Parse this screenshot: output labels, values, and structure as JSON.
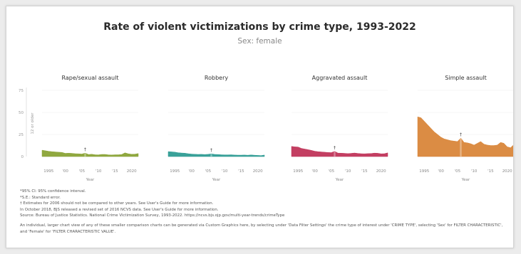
{
  "title": "Rate of violent victimizations by crime type, 1993-2022",
  "subtitle": "Sex: female",
  "chart_data": {
    "type": "area",
    "y_axis_label": "12 or older",
    "ylim": [
      0,
      75
    ],
    "y_ticks": [
      "0",
      "25",
      "50",
      "75"
    ],
    "x_tick_labels": [
      "1995",
      "'00",
      "'05",
      "'10",
      "'15",
      "2020"
    ],
    "xlabel": "Year",
    "x_years": [
      1993,
      1994,
      1995,
      1996,
      1997,
      1998,
      1999,
      2000,
      2001,
      2002,
      2003,
      2004,
      2005,
      2006,
      2007,
      2008,
      2009,
      2010,
      2011,
      2012,
      2013,
      2014,
      2015,
      2016,
      2017,
      2018,
      2019,
      2020,
      2021,
      2022
    ],
    "annotation_marker": "†",
    "annotation_year": 2006,
    "panels": [
      {
        "name": "Rape/sexual assault",
        "color": "#8aa336",
        "values": [
          7.2,
          6.6,
          5.9,
          5.5,
          5.2,
          4.9,
          4.7,
          3.6,
          3.8,
          3.6,
          3.2,
          3.1,
          2.8,
          3.9,
          2.3,
          2.6,
          2.0,
          1.9,
          2.4,
          2.4,
          1.9,
          1.8,
          2.0,
          2.0,
          2.3,
          4.2,
          3.1,
          2.6,
          2.7,
          3.4
        ]
      },
      {
        "name": "Robbery",
        "color": "#2f9c94",
        "values": [
          5.6,
          5.3,
          5.0,
          4.3,
          4.0,
          3.8,
          3.2,
          2.8,
          2.6,
          2.4,
          2.5,
          2.3,
          2.5,
          3.1,
          2.4,
          2.3,
          2.0,
          1.9,
          1.9,
          2.0,
          1.7,
          1.6,
          1.6,
          1.7,
          1.5,
          1.8,
          1.5,
          1.3,
          1.1,
          1.7
        ]
      },
      {
        "name": "Aggravated assault",
        "color": "#c0355a",
        "values": [
          11.5,
          11.0,
          10.8,
          9.2,
          8.5,
          7.8,
          7.0,
          6.0,
          5.5,
          5.2,
          4.9,
          4.6,
          4.4,
          5.9,
          3.9,
          3.8,
          3.6,
          3.3,
          3.6,
          4.0,
          3.5,
          3.2,
          3.1,
          3.3,
          3.4,
          3.9,
          3.7,
          3.1,
          3.2,
          4.2
        ]
      },
      {
        "name": "Simple assault",
        "color": "#d9863a",
        "values": [
          45.0,
          44.0,
          40.0,
          36.0,
          32.0,
          28.0,
          25.0,
          22.0,
          20.0,
          19.0,
          18.0,
          17.5,
          17.0,
          21.0,
          16.0,
          15.5,
          14.5,
          13.0,
          15.0,
          17.0,
          14.0,
          13.0,
          12.5,
          12.5,
          13.0,
          16.0,
          15.0,
          11.0,
          10.0,
          13.5
        ]
      }
    ]
  },
  "notes": [
    "*95% CI: 95% confidence interval.",
    "*S.E.: Standard error.",
    "† Estimates for 2006 should not be compared to other years. See User's Guide for more information.",
    "In October 2018, BJS released a revised set of 2016 NCVS data. See User's Guide for more information.",
    "Source: Bureau of Justice Statistics. National Crime Victimization Survey, 1993-2022. https://ncvs.bjs.ojp.gov/multi-year-trends/crimeType"
  ],
  "footer_note": "An individual, larger chart view of any of these smaller comparison charts can be generated via Custom Graphics here, by selecting under 'Data Filter Settings' the crime type of interest under 'CRIME TYPE', selecting 'Sex' for FILTER CHARACTERISTIC', and 'Female' for 'FILTER CHARACTERISTIC VALUE'."
}
